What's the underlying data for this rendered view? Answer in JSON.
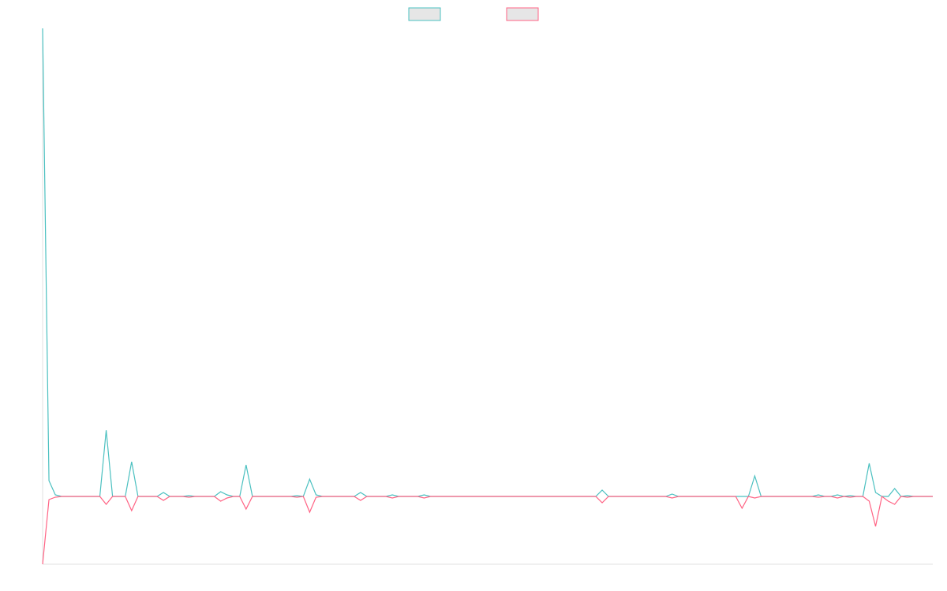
{
  "chart_data": {
    "type": "line",
    "legend": "top",
    "ylim": [
      -86,
      594
    ],
    "series": [
      {
        "color": "#4bc0c0",
        "values": [
          594,
          20,
          2,
          0,
          0,
          0,
          0,
          0,
          0,
          0,
          84,
          0,
          0,
          0,
          44,
          0,
          0,
          0,
          0,
          5,
          0,
          0,
          0,
          1,
          0,
          0,
          0,
          0,
          6,
          2,
          0,
          0,
          40,
          0,
          0,
          0,
          0,
          0,
          0,
          0,
          1,
          0,
          22,
          2,
          0,
          0,
          0,
          0,
          0,
          0,
          5,
          0,
          0,
          0,
          0,
          2,
          0,
          0,
          0,
          0,
          2,
          0,
          0,
          0,
          0,
          0,
          0,
          0,
          0,
          0,
          0,
          0,
          0,
          0,
          0,
          0,
          0,
          0,
          0,
          0,
          0,
          0,
          0,
          0,
          0,
          0,
          0,
          0,
          8,
          0,
          0,
          0,
          0,
          0,
          0,
          0,
          0,
          0,
          0,
          3,
          0,
          0,
          0,
          0,
          0,
          0,
          0,
          0,
          0,
          0,
          0,
          0,
          26,
          0,
          0,
          0,
          0,
          0,
          0,
          0,
          0,
          0,
          2,
          0,
          0,
          2,
          0,
          1,
          0,
          0,
          42,
          5,
          0,
          0,
          10,
          0,
          1,
          0,
          0,
          0,
          0
        ]
      },
      {
        "color": "#ff6384",
        "values": [
          -86,
          -4,
          -1,
          0,
          0,
          0,
          0,
          0,
          0,
          0,
          -10,
          0,
          0,
          0,
          -18,
          0,
          0,
          0,
          0,
          -5,
          0,
          0,
          0,
          -1,
          0,
          0,
          0,
          0,
          -6,
          -2,
          0,
          0,
          -16,
          0,
          0,
          0,
          0,
          0,
          0,
          0,
          -1,
          0,
          -20,
          -1,
          0,
          0,
          0,
          0,
          0,
          0,
          -5,
          0,
          0,
          0,
          0,
          -2,
          0,
          0,
          0,
          0,
          -2,
          0,
          0,
          0,
          0,
          0,
          0,
          0,
          0,
          0,
          0,
          0,
          0,
          0,
          0,
          0,
          0,
          0,
          0,
          0,
          0,
          0,
          0,
          0,
          0,
          0,
          0,
          0,
          -8,
          0,
          0,
          0,
          0,
          0,
          0,
          0,
          0,
          0,
          0,
          -2,
          0,
          0,
          0,
          0,
          0,
          0,
          0,
          0,
          0,
          0,
          -15,
          0,
          -2,
          0,
          0,
          0,
          0,
          0,
          0,
          0,
          0,
          0,
          -1,
          0,
          0,
          -2,
          0,
          -1,
          0,
          0,
          -6,
          -38,
          0,
          -6,
          -10,
          0,
          -1,
          0,
          0,
          0,
          0
        ]
      }
    ]
  }
}
